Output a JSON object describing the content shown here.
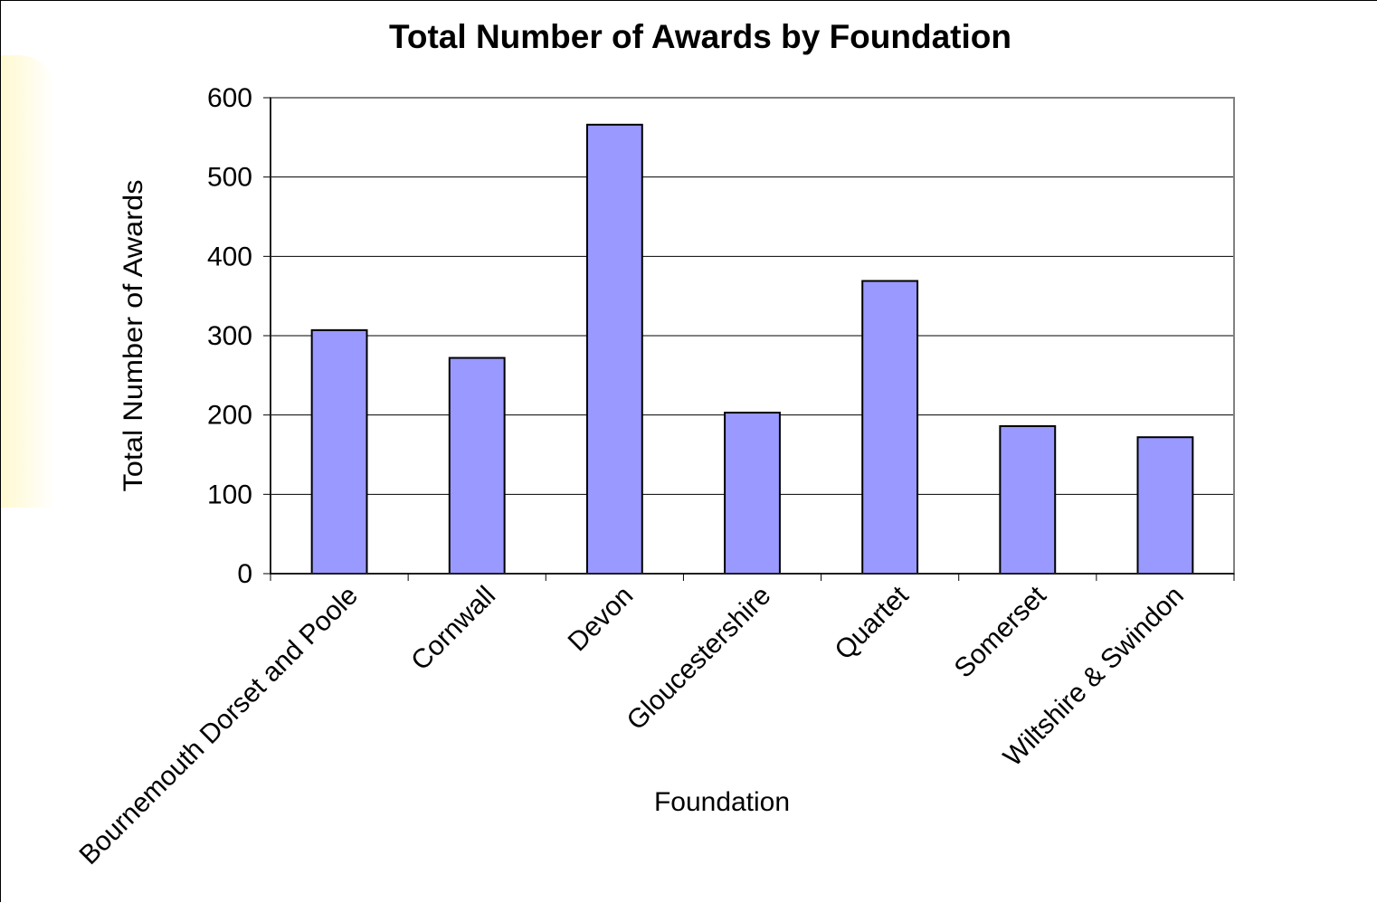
{
  "chart_data": {
    "type": "bar",
    "title": "Total Number of Awards by Foundation",
    "xlabel": "Foundation",
    "ylabel": "Total Number of Awards",
    "categories": [
      "Bournemouth Dorset and Poole",
      "Cornwall",
      "Devon",
      "Gloucestershire",
      "Quartet",
      "Somerset",
      "Wiltshire & Swindon"
    ],
    "values": [
      307,
      272,
      566,
      203,
      369,
      186,
      172
    ],
    "ylim": [
      0,
      600
    ],
    "yticks": [
      0,
      100,
      200,
      300,
      400,
      500,
      600
    ],
    "grid": true,
    "legend": "none",
    "colors": {
      "bar_fill": "#9999ff",
      "bar_stroke": "#000000",
      "plot_border": "#808080",
      "gridline": "#000000"
    }
  }
}
